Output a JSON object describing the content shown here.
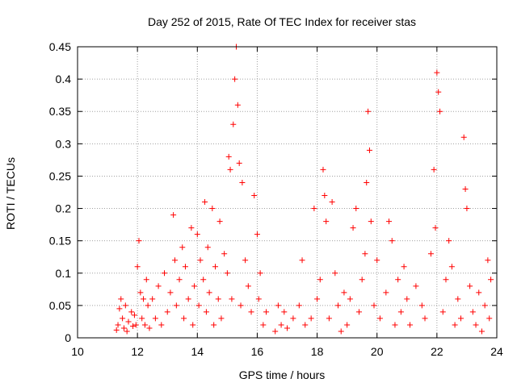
{
  "chart_data": {
    "type": "scatter",
    "title": "Day 252 of 2015, Rate Of TEC Index for receiver stas",
    "xlabel": "GPS time / hours",
    "ylabel": "ROTI / TECUs",
    "xlim": [
      10,
      24
    ],
    "ylim": [
      0,
      0.45
    ],
    "xticks": [
      10,
      12,
      14,
      16,
      18,
      20,
      22,
      24
    ],
    "xtick_labels": [
      "10",
      "12",
      "14",
      "16",
      "18",
      "20",
      "22",
      "24"
    ],
    "yticks": [
      0,
      0.05,
      0.1,
      0.15,
      0.2,
      0.25,
      0.3,
      0.35,
      0.4,
      0.45
    ],
    "ytick_labels": [
      "0",
      "0.05",
      "0.1",
      "0.15",
      "0.2",
      "0.25",
      "0.3",
      "0.35",
      "0.4",
      "0.45"
    ],
    "grid": true,
    "marker": "+",
    "color": "#ff0000",
    "series": [
      {
        "name": "ROTI",
        "points": [
          [
            11.3,
            0.012
          ],
          [
            11.35,
            0.02
          ],
          [
            11.4,
            0.045
          ],
          [
            11.45,
            0.06
          ],
          [
            11.5,
            0.03
          ],
          [
            11.55,
            0.015
          ],
          [
            11.6,
            0.05
          ],
          [
            11.65,
            0.01
          ],
          [
            11.7,
            0.025
          ],
          [
            11.8,
            0.04
          ],
          [
            11.85,
            0.018
          ],
          [
            11.9,
            0.035
          ],
          [
            11.95,
            0.02
          ],
          [
            12.0,
            0.11
          ],
          [
            12.05,
            0.15
          ],
          [
            12.1,
            0.07
          ],
          [
            12.15,
            0.03
          ],
          [
            12.2,
            0.06
          ],
          [
            12.25,
            0.02
          ],
          [
            12.3,
            0.09
          ],
          [
            12.35,
            0.05
          ],
          [
            12.4,
            0.015
          ],
          [
            12.5,
            0.06
          ],
          [
            12.6,
            0.03
          ],
          [
            12.7,
            0.08
          ],
          [
            12.8,
            0.02
          ],
          [
            12.9,
            0.1
          ],
          [
            13.0,
            0.04
          ],
          [
            13.1,
            0.07
          ],
          [
            13.2,
            0.19
          ],
          [
            13.25,
            0.12
          ],
          [
            13.3,
            0.05
          ],
          [
            13.4,
            0.09
          ],
          [
            13.5,
            0.14
          ],
          [
            13.55,
            0.03
          ],
          [
            13.6,
            0.11
          ],
          [
            13.7,
            0.06
          ],
          [
            13.8,
            0.17
          ],
          [
            13.85,
            0.02
          ],
          [
            13.9,
            0.08
          ],
          [
            14.0,
            0.16
          ],
          [
            14.05,
            0.05
          ],
          [
            14.1,
            0.12
          ],
          [
            14.2,
            0.09
          ],
          [
            14.25,
            0.21
          ],
          [
            14.3,
            0.04
          ],
          [
            14.35,
            0.14
          ],
          [
            14.4,
            0.07
          ],
          [
            14.5,
            0.2
          ],
          [
            14.55,
            0.02
          ],
          [
            14.6,
            0.11
          ],
          [
            14.7,
            0.06
          ],
          [
            14.75,
            0.18
          ],
          [
            14.8,
            0.03
          ],
          [
            14.9,
            0.13
          ],
          [
            15.0,
            0.1
          ],
          [
            15.05,
            0.28
          ],
          [
            15.1,
            0.26
          ],
          [
            15.15,
            0.06
          ],
          [
            15.2,
            0.33
          ],
          [
            15.25,
            0.4
          ],
          [
            15.3,
            0.45
          ],
          [
            15.35,
            0.36
          ],
          [
            15.4,
            0.27
          ],
          [
            15.45,
            0.05
          ],
          [
            15.5,
            0.24
          ],
          [
            15.6,
            0.12
          ],
          [
            15.7,
            0.08
          ],
          [
            15.8,
            0.04
          ],
          [
            15.9,
            0.22
          ],
          [
            16.0,
            0.16
          ],
          [
            16.05,
            0.06
          ],
          [
            16.1,
            0.1
          ],
          [
            16.2,
            0.02
          ],
          [
            16.3,
            0.04
          ],
          [
            16.6,
            0.01
          ],
          [
            16.7,
            0.05
          ],
          [
            16.8,
            0.02
          ],
          [
            16.9,
            0.04
          ],
          [
            17.0,
            0.015
          ],
          [
            17.2,
            0.03
          ],
          [
            17.4,
            0.05
          ],
          [
            17.5,
            0.12
          ],
          [
            17.6,
            0.02
          ],
          [
            17.8,
            0.03
          ],
          [
            17.9,
            0.2
          ],
          [
            18.0,
            0.06
          ],
          [
            18.1,
            0.09
          ],
          [
            18.2,
            0.26
          ],
          [
            18.25,
            0.22
          ],
          [
            18.3,
            0.18
          ],
          [
            18.4,
            0.03
          ],
          [
            18.5,
            0.21
          ],
          [
            18.6,
            0.1
          ],
          [
            18.7,
            0.05
          ],
          [
            18.8,
            0.01
          ],
          [
            18.9,
            0.07
          ],
          [
            19.0,
            0.02
          ],
          [
            19.1,
            0.06
          ],
          [
            19.2,
            0.17
          ],
          [
            19.3,
            0.2
          ],
          [
            19.4,
            0.04
          ],
          [
            19.5,
            0.09
          ],
          [
            19.6,
            0.13
          ],
          [
            19.65,
            0.24
          ],
          [
            19.7,
            0.35
          ],
          [
            19.75,
            0.29
          ],
          [
            19.8,
            0.18
          ],
          [
            19.9,
            0.05
          ],
          [
            20.0,
            0.12
          ],
          [
            20.1,
            0.03
          ],
          [
            20.3,
            0.07
          ],
          [
            20.4,
            0.18
          ],
          [
            20.5,
            0.15
          ],
          [
            20.6,
            0.02
          ],
          [
            20.7,
            0.09
          ],
          [
            20.8,
            0.04
          ],
          [
            20.9,
            0.11
          ],
          [
            21.0,
            0.06
          ],
          [
            21.1,
            0.02
          ],
          [
            21.3,
            0.08
          ],
          [
            21.5,
            0.05
          ],
          [
            21.6,
            0.03
          ],
          [
            21.8,
            0.13
          ],
          [
            21.9,
            0.26
          ],
          [
            21.95,
            0.17
          ],
          [
            22.0,
            0.41
          ],
          [
            22.05,
            0.38
          ],
          [
            22.1,
            0.35
          ],
          [
            22.2,
            0.04
          ],
          [
            22.3,
            0.09
          ],
          [
            22.4,
            0.15
          ],
          [
            22.5,
            0.11
          ],
          [
            22.6,
            0.02
          ],
          [
            22.7,
            0.06
          ],
          [
            22.8,
            0.03
          ],
          [
            22.9,
            0.31
          ],
          [
            22.95,
            0.23
          ],
          [
            23.0,
            0.2
          ],
          [
            23.1,
            0.08
          ],
          [
            23.2,
            0.04
          ],
          [
            23.3,
            0.02
          ],
          [
            23.4,
            0.07
          ],
          [
            23.5,
            0.01
          ],
          [
            23.6,
            0.05
          ],
          [
            23.7,
            0.12
          ],
          [
            23.75,
            0.03
          ],
          [
            23.8,
            0.09
          ]
        ]
      }
    ]
  }
}
